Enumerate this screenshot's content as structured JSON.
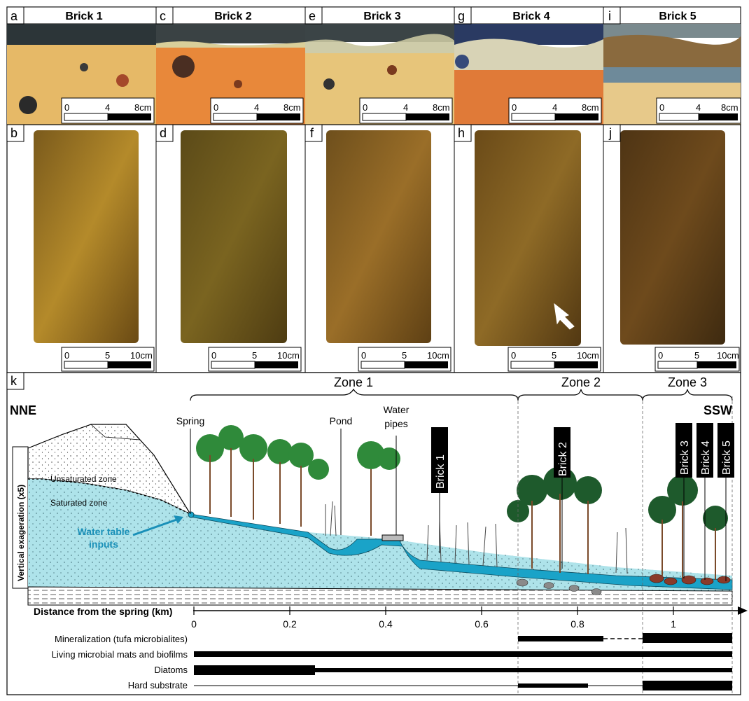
{
  "panels_top": [
    {
      "letter": "a",
      "title": "Brick 1"
    },
    {
      "letter": "c",
      "title": "Brick 2"
    },
    {
      "letter": "e",
      "title": "Brick 3"
    },
    {
      "letter": "g",
      "title": "Brick 4"
    },
    {
      "letter": "i",
      "title": "Brick 5"
    }
  ],
  "panels_mid_letters": [
    "b",
    "d",
    "f",
    "h",
    "j"
  ],
  "scalebar_top": {
    "labels": [
      "0",
      "4",
      "8cm"
    ]
  },
  "scalebar_mid": {
    "labels": [
      "0",
      "5",
      "10cm"
    ]
  },
  "section": {
    "letter": "k",
    "left_dir": "NNE",
    "right_dir": "SSW",
    "zones": [
      "Zone 1",
      "Zone 2",
      "Zone 3"
    ],
    "labels": {
      "spring": "Spring",
      "pond": "Pond",
      "water_pipes_1": "Water",
      "water_pipes_2": "pipes",
      "unsaturated": "Unsaturated zone",
      "saturated": "Saturated zone",
      "water_table_1": "Water table",
      "water_table_2": "inputs",
      "vertical_exag": "Vertical exageration (x5)"
    },
    "bricks": [
      "Brick 1",
      "Brick 2",
      "Brick 3",
      "Brick 4",
      "Brick 5"
    ],
    "axis": {
      "label": "Distance from the spring (km)",
      "ticks": [
        "0",
        "0.2",
        "0.4",
        "0.6",
        "0.8",
        "1"
      ]
    },
    "bars": [
      "Mineralization (tufa microbialites)",
      "Living microbial mats and biofilms",
      "Diatoms",
      "Hard substrate"
    ]
  },
  "colors": {
    "water": "#1aa3c8",
    "groundwater": "#aee3ea",
    "black": "#000000"
  }
}
